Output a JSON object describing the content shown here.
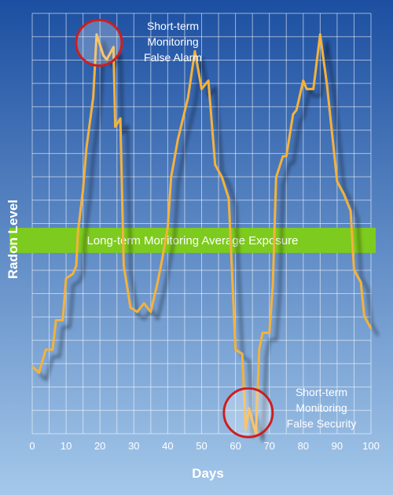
{
  "chart_data": {
    "type": "line",
    "xlabel": "Days",
    "ylabel": "Radon Level",
    "xlim": [
      0,
      100
    ],
    "ylim": [
      0,
      100
    ],
    "x_ticks": [
      "0",
      "10",
      "20",
      "30",
      "40",
      "50",
      "60",
      "70",
      "80",
      "90",
      "100"
    ],
    "grid": true,
    "y_tick_labels_shown": false,
    "series": [
      {
        "x": [
          0,
          2,
          4,
          6,
          7,
          9,
          10,
          12,
          13,
          13.5,
          15,
          16,
          18,
          19,
          21,
          22,
          24,
          24.5,
          26,
          27,
          29,
          31,
          33,
          35,
          37,
          38,
          40,
          41,
          43,
          46,
          48,
          50,
          52,
          54,
          56,
          58,
          60,
          62,
          63,
          64,
          66,
          67,
          68,
          70,
          71,
          72,
          74,
          75,
          77,
          78,
          80,
          81,
          83,
          85,
          87,
          90,
          92,
          94,
          95,
          97,
          98,
          100
        ],
        "y": [
          16,
          14.5,
          20,
          20,
          27,
          27,
          37,
          38,
          40,
          48,
          58,
          68,
          80,
          95,
          90,
          89,
          92,
          73,
          75,
          40,
          30,
          29,
          31,
          29,
          36,
          40,
          49,
          61,
          70,
          80,
          91,
          82,
          84,
          64,
          61,
          56,
          20,
          19,
          1,
          6,
          0,
          20,
          24,
          24,
          35,
          61,
          66,
          66,
          76,
          77,
          84,
          82,
          82,
          95,
          83,
          60,
          57,
          53,
          39,
          36,
          28,
          25
        ]
      }
    ],
    "annotations": [
      {
        "text": "Long-term Monitoring Average Exposure",
        "y": 46
      },
      {
        "text": [
          "Short-term",
          "Monitoring",
          "False Alarm"
        ],
        "x": 19,
        "y": 93
      },
      {
        "text": [
          "Short-term",
          "Monitoring",
          "False Security"
        ],
        "x": 64,
        "y": 5
      }
    ],
    "colors": {
      "line": "#f4b23a",
      "band": "#7dcb1e",
      "grid": "#ffffff",
      "marker_circle": "#cc1f1f",
      "background_top": "#1c4fa1",
      "background_bottom": "#a4c8ea"
    }
  }
}
